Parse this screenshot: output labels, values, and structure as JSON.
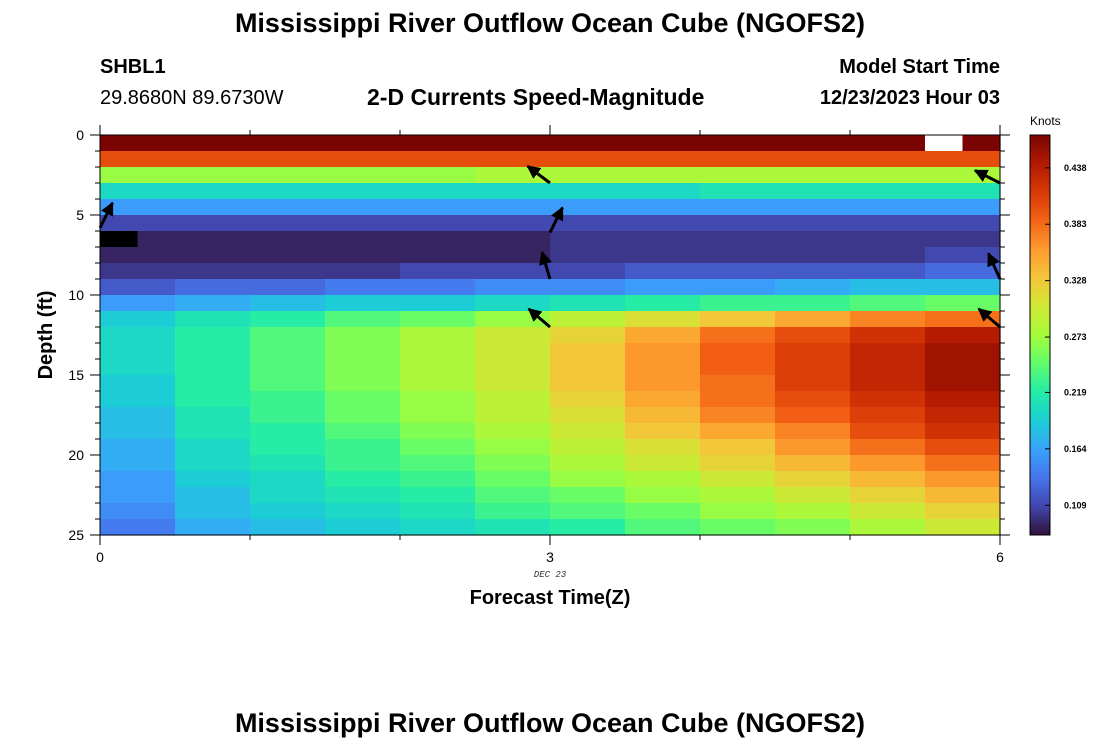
{
  "header": {
    "title": "Mississippi River Outflow Ocean Cube (NGOFS2)",
    "station_id": "SHBL1",
    "station_coords": "29.8680N  89.6730W",
    "subtitle": "2-D Currents Speed-Magnitude",
    "model_start_label": "Model Start Time",
    "model_start_value": "12/23/2023 Hour 03"
  },
  "footer": {
    "title": "Mississippi River Outflow Ocean Cube (NGOFS2)"
  },
  "colors": {
    "palette": [
      "#30123b",
      "#4145ab",
      "#4675ed",
      "#39a2fc",
      "#1bcfd4",
      "#24eca6",
      "#61fc6c",
      "#a4fc3b",
      "#d1e834",
      "#f3c63a",
      "#fe9b2d",
      "#f36315",
      "#d93806",
      "#b11901",
      "#7a0402"
    ]
  },
  "chart_data": {
    "type": "heatmap",
    "title": "2-D Currents Speed-Magnitude",
    "xlabel": "Forecast Time(Z)",
    "ylabel": "Depth (ft)",
    "date_label": "DEC 23",
    "xlim": [
      0,
      6
    ],
    "ylim": [
      25,
      0
    ],
    "x_ticks": [
      "0",
      "3",
      "6"
    ],
    "y_ticks": [
      "0",
      "5",
      "10",
      "15",
      "20",
      "25"
    ],
    "colorbar": {
      "units": "Knots",
      "range": [
        0.08,
        0.47
      ],
      "ticks": [
        "0.438",
        "0.383",
        "0.328",
        "0.273",
        "0.219",
        "0.164",
        "0.109"
      ]
    },
    "time_bins": 12,
    "depth_bins": 25,
    "speed_knots": [
      [
        0.47,
        0.47,
        0.47,
        0.47,
        0.47,
        0.47,
        0.47,
        0.47,
        0.47,
        0.47,
        0.47,
        0.47
      ],
      [
        0.4,
        0.4,
        0.4,
        0.4,
        0.4,
        0.4,
        0.4,
        0.4,
        0.4,
        0.4,
        0.4,
        0.4
      ],
      [
        0.27,
        0.27,
        0.27,
        0.27,
        0.27,
        0.28,
        0.28,
        0.28,
        0.28,
        0.28,
        0.28,
        0.28
      ],
      [
        0.2,
        0.2,
        0.2,
        0.2,
        0.2,
        0.2,
        0.2,
        0.2,
        0.21,
        0.21,
        0.21,
        0.21
      ],
      [
        0.16,
        0.16,
        0.16,
        0.16,
        0.16,
        0.16,
        0.16,
        0.16,
        0.16,
        0.16,
        0.16,
        0.16
      ],
      [
        0.11,
        0.11,
        0.11,
        0.11,
        0.11,
        0.11,
        0.11,
        0.11,
        0.11,
        0.11,
        0.11,
        0.11
      ],
      [
        0.09,
        0.09,
        0.09,
        0.09,
        0.09,
        0.09,
        0.1,
        0.1,
        0.1,
        0.1,
        0.1,
        0.1
      ],
      [
        0.09,
        0.09,
        0.09,
        0.09,
        0.09,
        0.09,
        0.1,
        0.1,
        0.1,
        0.1,
        0.1,
        0.11
      ],
      [
        0.1,
        0.1,
        0.1,
        0.1,
        0.11,
        0.11,
        0.11,
        0.12,
        0.12,
        0.12,
        0.12,
        0.13
      ],
      [
        0.12,
        0.13,
        0.13,
        0.14,
        0.14,
        0.15,
        0.15,
        0.16,
        0.16,
        0.17,
        0.18,
        0.18
      ],
      [
        0.16,
        0.17,
        0.18,
        0.19,
        0.19,
        0.2,
        0.21,
        0.22,
        0.23,
        0.23,
        0.24,
        0.25
      ],
      [
        0.19,
        0.21,
        0.22,
        0.24,
        0.25,
        0.27,
        0.29,
        0.31,
        0.33,
        0.35,
        0.37,
        0.38
      ],
      [
        0.2,
        0.22,
        0.24,
        0.26,
        0.28,
        0.3,
        0.32,
        0.35,
        0.38,
        0.4,
        0.42,
        0.44
      ],
      [
        0.2,
        0.22,
        0.24,
        0.26,
        0.28,
        0.3,
        0.33,
        0.36,
        0.39,
        0.41,
        0.43,
        0.45
      ],
      [
        0.2,
        0.22,
        0.24,
        0.26,
        0.28,
        0.3,
        0.33,
        0.36,
        0.39,
        0.41,
        0.43,
        0.45
      ],
      [
        0.19,
        0.22,
        0.24,
        0.26,
        0.28,
        0.3,
        0.33,
        0.36,
        0.38,
        0.41,
        0.43,
        0.45
      ],
      [
        0.19,
        0.22,
        0.23,
        0.25,
        0.27,
        0.29,
        0.32,
        0.35,
        0.38,
        0.4,
        0.42,
        0.44
      ],
      [
        0.18,
        0.21,
        0.23,
        0.25,
        0.27,
        0.29,
        0.31,
        0.34,
        0.37,
        0.39,
        0.41,
        0.43
      ],
      [
        0.18,
        0.21,
        0.22,
        0.24,
        0.26,
        0.28,
        0.3,
        0.33,
        0.35,
        0.37,
        0.4,
        0.42
      ],
      [
        0.17,
        0.2,
        0.22,
        0.23,
        0.25,
        0.27,
        0.29,
        0.31,
        0.33,
        0.36,
        0.38,
        0.4
      ],
      [
        0.17,
        0.2,
        0.21,
        0.23,
        0.24,
        0.26,
        0.28,
        0.3,
        0.32,
        0.34,
        0.36,
        0.38
      ],
      [
        0.16,
        0.19,
        0.2,
        0.22,
        0.23,
        0.25,
        0.27,
        0.28,
        0.3,
        0.32,
        0.34,
        0.36
      ],
      [
        0.16,
        0.18,
        0.2,
        0.21,
        0.22,
        0.24,
        0.25,
        0.27,
        0.28,
        0.3,
        0.32,
        0.34
      ],
      [
        0.15,
        0.18,
        0.19,
        0.2,
        0.21,
        0.23,
        0.24,
        0.25,
        0.27,
        0.28,
        0.3,
        0.32
      ],
      [
        0.14,
        0.17,
        0.18,
        0.19,
        0.2,
        0.21,
        0.22,
        0.24,
        0.25,
        0.26,
        0.28,
        0.3
      ]
    ],
    "masked_cells": [
      {
        "time_bin": 0,
        "depth_bin": 6
      },
      {
        "time_bin": 11,
        "depth_bin": 0
      }
    ],
    "vectors": [
      {
        "time_hr": 0.0,
        "depth_ft": 5.8,
        "u": 0.5,
        "v": 1.0
      },
      {
        "time_hr": 3.0,
        "depth_ft": 3.0,
        "u": -1.0,
        "v": 0.75
      },
      {
        "time_hr": 3.0,
        "depth_ft": 6.1,
        "u": 0.5,
        "v": 1.0
      },
      {
        "time_hr": 3.0,
        "depth_ft": 9.0,
        "u": -0.3,
        "v": 1.0
      },
      {
        "time_hr": 3.0,
        "depth_ft": 12.0,
        "u": -1.0,
        "v": 0.85
      },
      {
        "time_hr": 6.0,
        "depth_ft": 3.0,
        "u": -1.0,
        "v": 0.5
      },
      {
        "time_hr": 6.0,
        "depth_ft": 9.0,
        "u": -0.45,
        "v": 1.0
      },
      {
        "time_hr": 6.0,
        "depth_ft": 12.0,
        "u": -1.0,
        "v": 0.85
      }
    ]
  }
}
